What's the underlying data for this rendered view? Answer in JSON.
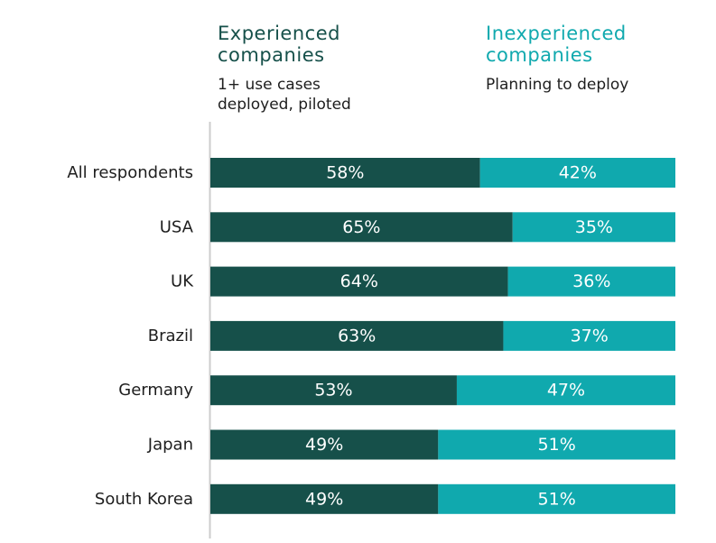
{
  "chart_data": {
    "type": "bar",
    "orientation": "horizontal",
    "stacked": true,
    "normalized": true,
    "categories": [
      "All respondents",
      "USA",
      "UK",
      "Brazil",
      "Germany",
      "Japan",
      "South Korea"
    ],
    "series": [
      {
        "name": "Experienced companies",
        "description": "1+ use cases deployed, piloted",
        "color": "#16504a",
        "values": [
          58,
          65,
          64,
          63,
          53,
          49,
          49
        ],
        "labels": [
          "58%",
          "65%",
          "64%",
          "63%",
          "53%",
          "49%",
          "49%"
        ]
      },
      {
        "name": "Inexperienced companies",
        "description": "Planning to deploy",
        "color": "#10a9ae",
        "values": [
          42,
          35,
          36,
          37,
          47,
          51,
          51
        ],
        "labels": [
          "42%",
          "35%",
          "36%",
          "37%",
          "47%",
          "51%",
          "51%"
        ]
      }
    ],
    "xlim": [
      0,
      100
    ],
    "grid": false,
    "legend_position": "top",
    "axis_color": "#cccccc"
  },
  "legend": {
    "experienced_title_1": "Experienced",
    "experienced_title_2": "companies",
    "experienced_sub_1": "1+ use cases",
    "experienced_sub_2": "deployed, piloted",
    "inexperienced_title_1": "Inexperienced",
    "inexperienced_title_2": "companies",
    "inexperienced_sub_1": "Planning to deploy"
  }
}
